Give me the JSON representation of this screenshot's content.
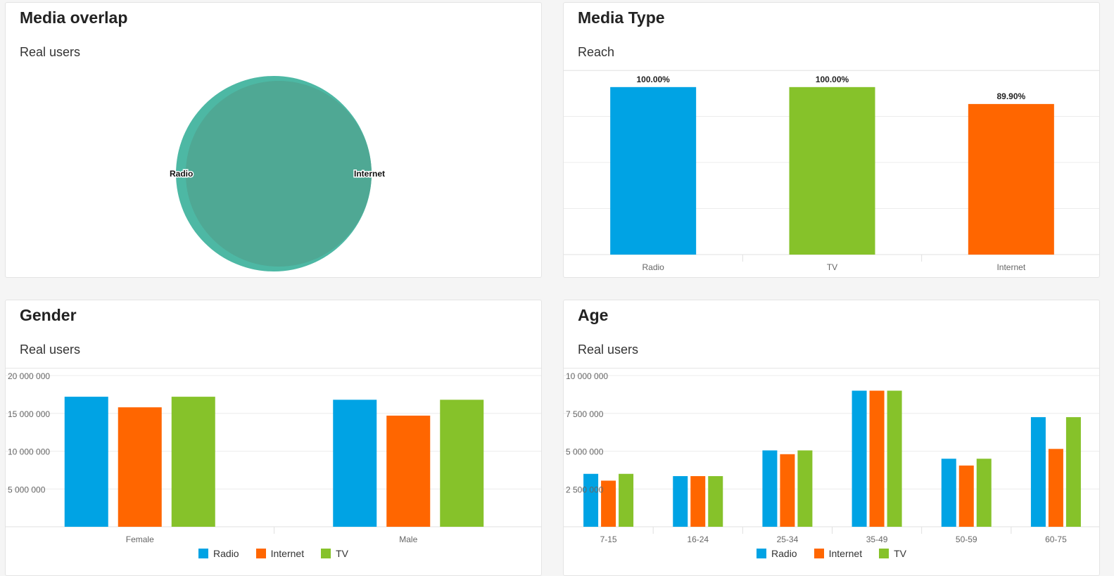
{
  "colors": {
    "radio": "#00a3e4",
    "internet": "#ff6600",
    "tv": "#86c22a",
    "venn_radio": "#4db8a4",
    "venn_internet": "#4fa894"
  },
  "cards": {
    "overlap": {
      "title": "Media overlap",
      "subtitle": "Real users"
    },
    "mediatype": {
      "title": "Media Type",
      "subtitle": "Reach"
    },
    "gender": {
      "title": "Gender",
      "subtitle": "Real users"
    },
    "age": {
      "title": "Age",
      "subtitle": "Real users"
    }
  },
  "legend": [
    "Radio",
    "Internet",
    "TV"
  ],
  "chart_data": [
    {
      "id": "overlap",
      "type": "venn",
      "sets": [
        {
          "name": "Radio",
          "relative_size": 1.0
        },
        {
          "name": "Internet",
          "relative_size": 0.95
        }
      ]
    },
    {
      "id": "mediatype",
      "type": "bar",
      "categories": [
        "Radio",
        "TV",
        "Internet"
      ],
      "values": [
        100.0,
        100.0,
        89.9
      ],
      "labels": [
        "100.00%",
        "100.00%",
        "89.90%"
      ],
      "ylim": [
        0,
        110
      ],
      "grid": true
    },
    {
      "id": "gender",
      "type": "bar",
      "categories": [
        "Female",
        "Male"
      ],
      "series": [
        {
          "name": "Radio",
          "values": [
            17200000,
            16800000
          ]
        },
        {
          "name": "Internet",
          "values": [
            15800000,
            14700000
          ]
        },
        {
          "name": "TV",
          "values": [
            17200000,
            16800000
          ]
        }
      ],
      "ylim": [
        0,
        20000000
      ],
      "yticks": [
        "5 000 000",
        "10 000 000",
        "15 000 000",
        "20 000 000"
      ],
      "ytick_values": [
        5000000,
        10000000,
        15000000,
        20000000
      ],
      "grid": true,
      "legend": "bottom"
    },
    {
      "id": "age",
      "type": "bar",
      "categories": [
        "7-15",
        "16-24",
        "25-34",
        "35-49",
        "50-59",
        "60-75"
      ],
      "series": [
        {
          "name": "Radio",
          "values": [
            3500000,
            3350000,
            5050000,
            9000000,
            4500000,
            7250000
          ]
        },
        {
          "name": "Internet",
          "values": [
            3050000,
            3350000,
            4800000,
            9000000,
            4050000,
            5150000
          ]
        },
        {
          "name": "TV",
          "values": [
            3500000,
            3350000,
            5050000,
            9000000,
            4500000,
            7250000
          ]
        }
      ],
      "ylim": [
        0,
        10000000
      ],
      "yticks": [
        "2 500 000",
        "5 000 000",
        "7 500 000",
        "10 000 000"
      ],
      "ytick_values": [
        2500000,
        5000000,
        7500000,
        10000000
      ],
      "grid": true,
      "legend": "bottom"
    }
  ]
}
